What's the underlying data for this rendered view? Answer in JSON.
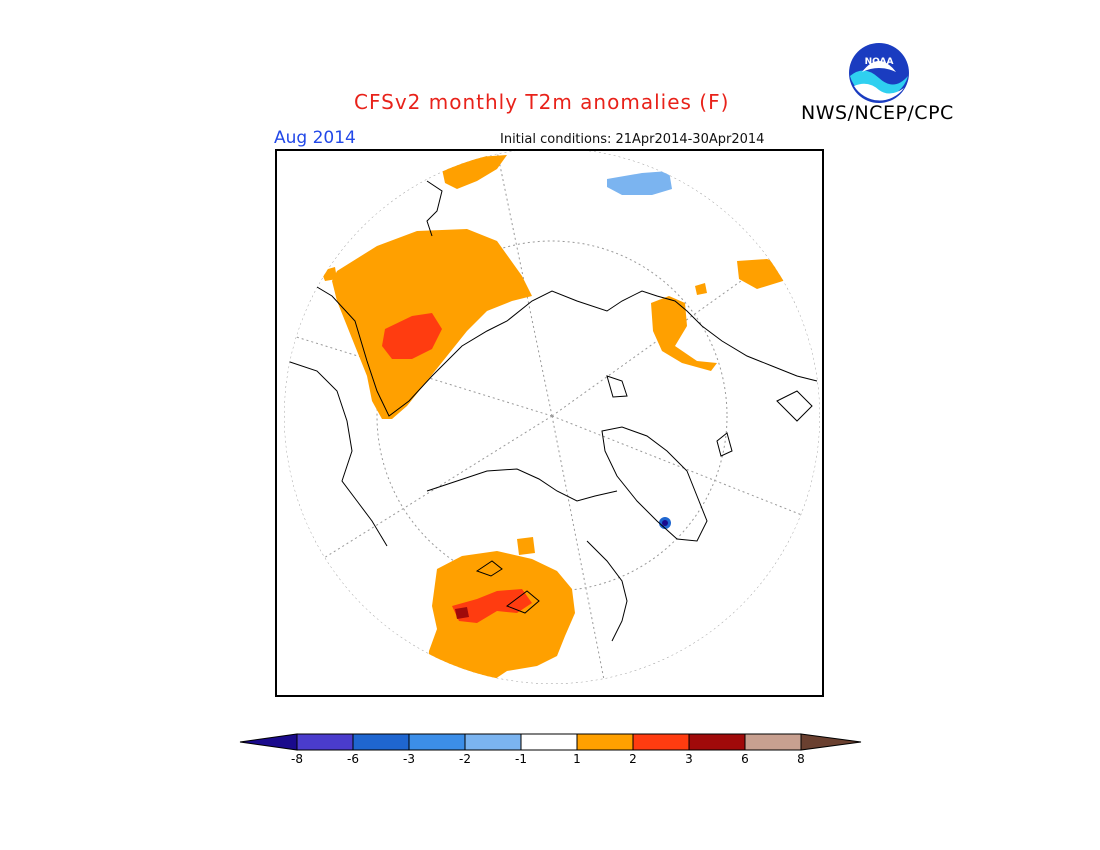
{
  "header": {
    "title": "CFSv2 monthly T2m anomalies (F)",
    "period": "Aug 2014",
    "initial_conditions": "Initial conditions: 21Apr2014-30Apr2014",
    "organization": "NWS/NCEP/CPC",
    "logo_text": "NOAA"
  },
  "colorbar": {
    "labels": [
      "-8",
      "-6",
      "-3",
      "-2",
      "-1",
      "1",
      "2",
      "3",
      "6",
      "8"
    ],
    "colors": [
      "#1a0a8c",
      "#4a3ccc",
      "#1f66d0",
      "#3c8ee8",
      "#7bb4f0",
      "#ffffff",
      "#ffa000",
      "#ff3c10",
      "#a00a0a",
      "#c8a090",
      "#6a4030"
    ]
  },
  "map": {
    "projection": "north-polar-stereographic",
    "anomaly_regions": [
      {
        "name": "Europe / Scandinavia warm",
        "level": "1 to 2"
      },
      {
        "name": "Eastern Europe core",
        "level": "2 to 3"
      },
      {
        "name": "Western North America warm",
        "level": "1 to 2"
      },
      {
        "name": "Central North America core",
        "level": "2 to 3"
      },
      {
        "name": "Pacific NW spot",
        "level": "3 to 6"
      },
      {
        "name": "North Pacific cool",
        "level": "-2 to -1"
      },
      {
        "name": "Greenland spot cool",
        "level": "-3 to -2"
      },
      {
        "name": "Siberia / East Asia warm",
        "level": "1 to 2"
      }
    ]
  }
}
